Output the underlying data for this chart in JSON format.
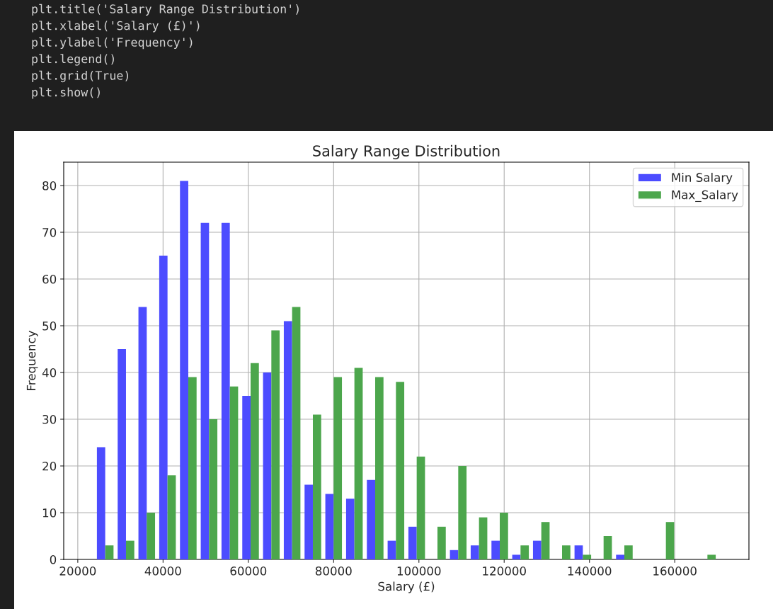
{
  "chart_data": {
    "type": "histogram",
    "title": "Salary Range Distribution",
    "xlabel": "Salary (£)",
    "ylabel": "Frequency",
    "bins": [
      24000,
      28870,
      33740,
      38610,
      43480,
      48350,
      53220,
      58090,
      62960,
      67830,
      72700,
      77570,
      82440,
      87310,
      92180,
      97050,
      101920,
      106790,
      111660,
      116530,
      121400,
      126270,
      131140,
      136010,
      140880,
      145750,
      150620,
      155490,
      160360,
      165230,
      170100
    ],
    "series": [
      {
        "name": "Min Salary",
        "color": "#4c4cff",
        "values": [
          24,
          45,
          54,
          65,
          81,
          72,
          72,
          35,
          40,
          51,
          16,
          14,
          13,
          17,
          4,
          7,
          0,
          2,
          3,
          4,
          1,
          4,
          0,
          3,
          0,
          1,
          0,
          0,
          0,
          0
        ]
      },
      {
        "name": "Max_Salary",
        "color": "#4ca64c",
        "values": [
          3,
          4,
          10,
          18,
          39,
          30,
          37,
          42,
          49,
          54,
          31,
          39,
          41,
          39,
          38,
          22,
          7,
          20,
          9,
          10,
          3,
          8,
          3,
          1,
          5,
          3,
          0,
          8,
          0,
          1
        ]
      }
    ],
    "xlim": [
      16700,
      177400
    ],
    "ylim": [
      0,
      85
    ],
    "xticks": [
      20000,
      40000,
      60000,
      80000,
      100000,
      120000,
      140000,
      160000
    ],
    "yticks": [
      0,
      10,
      20,
      30,
      40,
      50,
      60,
      70,
      80
    ],
    "grid": true,
    "legend": "top right",
    "annotations": [
      "plt.title('Salary Range Distribution')",
      "plt.xlabel('Salary (£)')",
      "plt.ylabel('Frequency')",
      "plt.legend()",
      "plt.grid(True)",
      "plt.show()"
    ]
  }
}
